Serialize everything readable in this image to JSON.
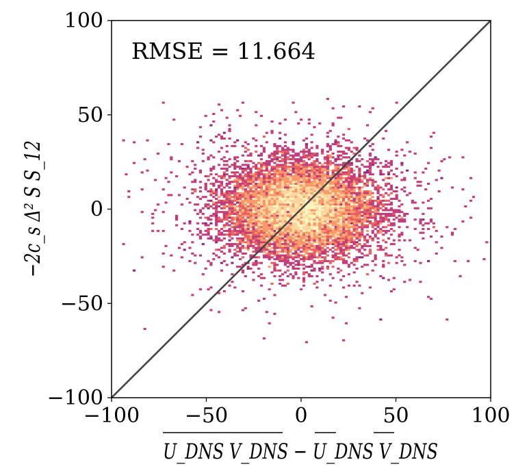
{
  "chart_data": {
    "type": "scatter",
    "subtype": "2d-histogram",
    "colormap": "magma",
    "xlim": [
      -100,
      100
    ],
    "ylim": [
      -100,
      100
    ],
    "x_ticks": [
      -100,
      -50,
      0,
      50,
      100
    ],
    "y_ticks": [
      -100,
      -50,
      0,
      50,
      100
    ],
    "x_tick_labels": [
      "−100",
      "−50",
      "0",
      "50",
      "100"
    ],
    "y_tick_labels": [
      "−100",
      "−50",
      "0",
      "50",
      "100"
    ],
    "xlabel": "U_DNS V_DNS − U_DNS V_DNS",
    "ylabel": "−2c_s Δ² S S_12",
    "annotation": "RMSE = 11.664",
    "reference_line": {
      "from": [
        -100,
        -100
      ],
      "to": [
        100,
        100
      ],
      "color": "#444444"
    },
    "distribution": {
      "center": [
        0,
        0
      ],
      "x_spread": 19,
      "y_spread": 12,
      "x_extent": [
        -95,
        100
      ],
      "y_extent": [
        -82,
        62
      ]
    },
    "colors": {
      "low": "#8b2a81",
      "mid_low": "#c23d7a",
      "mid": "#e8605f",
      "mid_high": "#f99a6b",
      "high": "#fdd49b",
      "peak": "#fcf5bd"
    }
  }
}
